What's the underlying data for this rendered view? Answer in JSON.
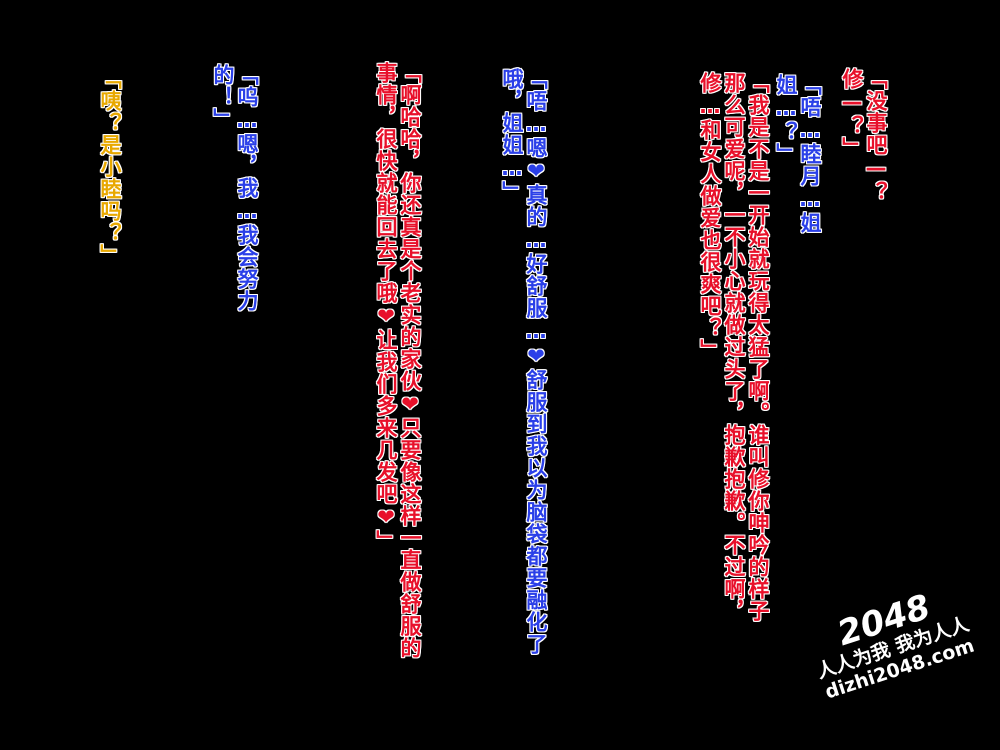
{
  "dialogues": [
    {
      "id": "1",
      "color": "red",
      "text": "「没事吧—？修—？」"
    },
    {
      "id": "2",
      "color": "blue",
      "text": "「唔…睦月…姐姐…？」"
    },
    {
      "id": "3",
      "color": "red",
      "text": "「我是不是一开始就玩得太猛了啊。谁叫修你呻吟的样子那么可爱呢，一不小心就做过头了，抱歉抱歉。不过啊，修…和女人做爱也很爽吧？」"
    },
    {
      "id": "4",
      "color": "blue",
      "text": "「唔…嗯❤真的…好舒服…❤舒服到我以为脑袋都要融化了哦，姐姐…」"
    },
    {
      "id": "5",
      "color": "red",
      "text": "「啊哈哈，你还真是个老实的家伙❤只要像这样一直做舒服的事情，很快就能回去了哦❤让我们多来几发吧❤」"
    },
    {
      "id": "6",
      "color": "blue",
      "text": "「呜…嗯，我…我会努力的！」"
    },
    {
      "id": "7",
      "color": "gold",
      "text": "「咦？是小睦吗？」"
    }
  ],
  "watermark": {
    "logo": "2048",
    "slogan": "人人为我 我为人人",
    "url": "dizhi2048.com"
  },
  "colors": {
    "background": "#000000",
    "red_text": "#e8102a",
    "blue_text": "#2a3fe8",
    "gold_text": "#e8a800",
    "outline": "#ffffff"
  }
}
